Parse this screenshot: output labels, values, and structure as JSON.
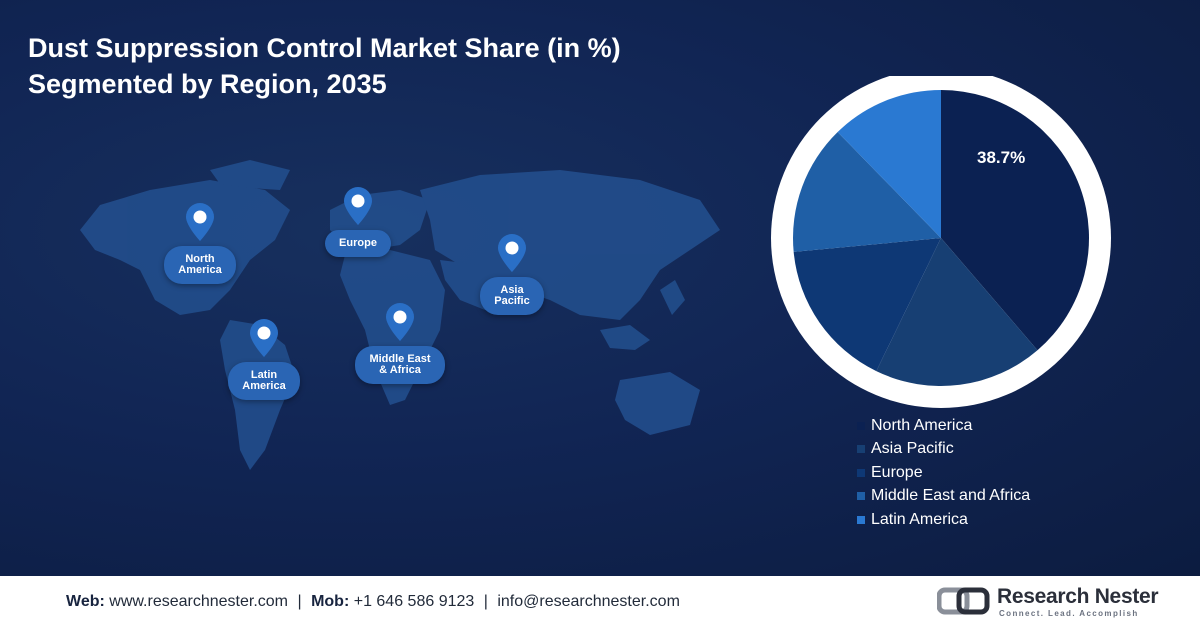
{
  "title": {
    "line1": "Dust Suppression Control Market Share (in %)",
    "line2": "Segmented by Region, 2035"
  },
  "map": {
    "regions": [
      {
        "id": "north-america",
        "label": "North\nAmerica"
      },
      {
        "id": "europe",
        "label": "Europe"
      },
      {
        "id": "asia-pacific",
        "label": "Asia\nPacific"
      },
      {
        "id": "latin-america",
        "label": "Latin\nAmerica"
      },
      {
        "id": "middle-east-africa",
        "label": "Middle East\n& Africa"
      }
    ]
  },
  "chart_data": {
    "type": "pie",
    "title": "Dust Suppression Control Market Share (in %) Segmented by Region, 2035",
    "categories": [
      "North America",
      "Asia Pacific",
      "Europe",
      "Middle East and Africa",
      "Latin America"
    ],
    "values": [
      38.7,
      18.5,
      16.3,
      14.2,
      12.3
    ],
    "data_labels": [
      "38.7%"
    ],
    "colors": [
      "#0b2152",
      "#173f73",
      "#0e3875",
      "#1f5fa6",
      "#2a79d2"
    ],
    "legend_position": "bottom-right"
  },
  "footer": {
    "web_label": "Web:",
    "web": "www.researchnester.com",
    "mob_label": "Mob:",
    "mob": "+1 646 586 9123",
    "email": "info@researchnester.com",
    "brand": "Research Nester",
    "tagline": "Connect. Lead. Accomplish"
  }
}
